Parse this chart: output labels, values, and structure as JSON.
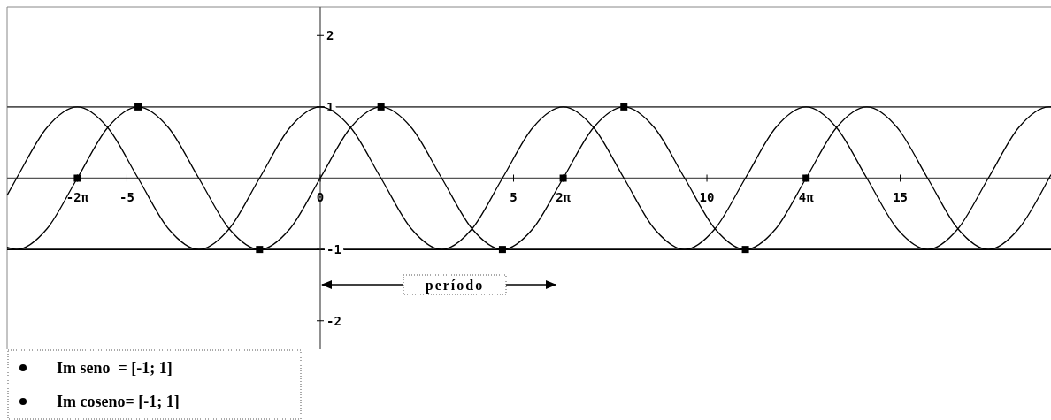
{
  "chart_data": {
    "type": "line",
    "xlim": [
      -8.1,
      18.9
    ],
    "ylim": [
      -2.4,
      2.4
    ],
    "xticks": [
      {
        "value": -6.283,
        "label": "-2π"
      },
      -5,
      0,
      5,
      {
        "value": 6.283,
        "label": "2π"
      },
      10,
      {
        "value": 12.566,
        "label": "4π"
      },
      15
    ],
    "yticks": [
      -2,
      -1,
      1,
      2
    ],
    "x": [
      -8.1,
      -7.854,
      -7.069,
      -6.283,
      -5.498,
      -4.712,
      -3.927,
      -3.142,
      -2.356,
      -1.571,
      -0.785,
      0,
      0.785,
      1.571,
      2.356,
      3.142,
      3.927,
      4.712,
      5.498,
      6.283,
      7.069,
      7.854,
      8.639,
      9.425,
      10.21,
      10.996,
      11.781,
      12.566,
      13.352,
      14.137,
      14.923,
      15.708,
      16.493,
      17.279,
      18.064,
      18.85,
      18.9
    ],
    "series": [
      {
        "color": "#000000",
        "values": [
          -0.97,
          -1,
          -0.71,
          0,
          0.71,
          1,
          0.71,
          0,
          -0.71,
          -1,
          -0.71,
          0,
          0.71,
          1,
          0.71,
          0,
          -0.71,
          -1,
          -0.71,
          0,
          0.71,
          1,
          0.71,
          0,
          -0.71,
          -1,
          -0.71,
          0,
          0.71,
          1,
          0.71,
          0,
          -0.71,
          -1,
          -0.71,
          0,
          0.05
        ]
      },
      {
        "color": "#000000",
        "values": [
          -0.24,
          0,
          0.71,
          1,
          0.71,
          0,
          -0.71,
          -1,
          -0.71,
          0,
          0.71,
          1,
          0.71,
          0,
          -0.71,
          -1,
          -0.71,
          0,
          0.71,
          1,
          0.71,
          0,
          -0.71,
          -1,
          -0.71,
          0,
          0.71,
          1,
          0.71,
          0,
          -0.71,
          -1,
          -0.71,
          0,
          0.71,
          1,
          1
        ]
      },
      {
        "type": "scatter",
        "marker": "square",
        "color": "#000000",
        "x": [
          -6.283,
          -4.712,
          -1.571,
          1.571,
          4.712,
          6.283,
          7.854,
          10.996,
          12.566
        ],
        "values": [
          0,
          1,
          -1,
          1,
          -1,
          0,
          1,
          -1,
          0
        ]
      }
    ],
    "ref_lines": [
      {
        "axis": "y",
        "value": 1,
        "label": null,
        "color": "#555555"
      },
      {
        "axis": "y",
        "value": -1,
        "label": null,
        "color": "#000000"
      }
    ],
    "annotations": [
      "período",
      "Im seno  = [-1; 1]",
      "Im coseno= [-1; 1]"
    ]
  }
}
